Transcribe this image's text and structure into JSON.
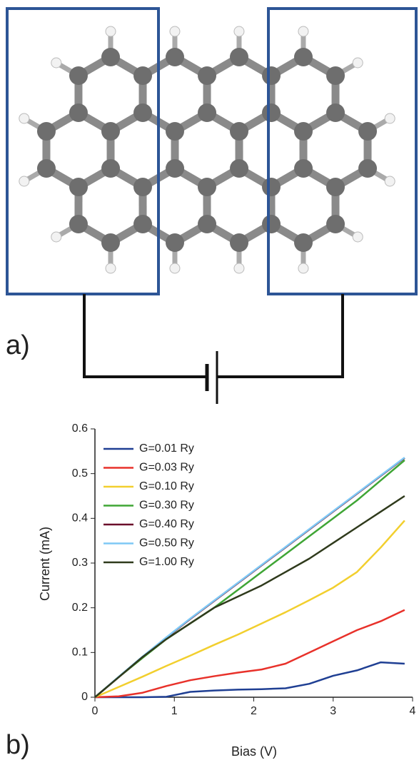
{
  "panel_labels": [
    "a)",
    "b)"
  ],
  "chart_data": {
    "type": "line",
    "xlabel": "Bias (V)",
    "ylabel": "Current (mA)",
    "x": [
      0,
      0.3,
      0.6,
      0.9,
      1.2,
      1.5,
      1.8,
      2.1,
      2.4,
      2.7,
      3.0,
      3.3,
      3.6,
      3.9
    ],
    "series": [
      {
        "name": "G=0.01 Ry",
        "color": "#1f3f93",
        "values": [
          0,
          0,
          0,
          0.001,
          0.012,
          0.015,
          0.017,
          0.018,
          0.02,
          0.03,
          0.048,
          0.06,
          0.078,
          0.075
        ]
      },
      {
        "name": "G=0.03 Ry",
        "color": "#e8312a",
        "values": [
          0,
          0.002,
          0.01,
          0.025,
          0.038,
          0.047,
          0.055,
          0.062,
          0.075,
          0.1,
          0.125,
          0.15,
          0.17,
          0.195
        ]
      },
      {
        "name": "G=0.10 Ry",
        "color": "#f2cf2e",
        "values": [
          0,
          0.023,
          0.046,
          0.07,
          0.093,
          0.117,
          0.14,
          0.165,
          0.19,
          0.217,
          0.245,
          0.28,
          0.335,
          0.395
        ]
      },
      {
        "name": "G=0.30 Ry",
        "color": "#3fa535",
        "values": [
          0,
          0.045,
          0.088,
          0.13,
          0.165,
          0.2,
          0.24,
          0.28,
          0.32,
          0.36,
          0.4,
          0.44,
          0.485,
          0.53
        ]
      },
      {
        "name": "G=0.40 Ry",
        "color": "#6b0f2b",
        "values": [
          0,
          0.045,
          0.09,
          0.133,
          0.175,
          0.215,
          0.255,
          0.295,
          0.335,
          0.375,
          0.415,
          0.455,
          0.495,
          0.535
        ]
      },
      {
        "name": "G=0.50 Ry",
        "color": "#7ec8f5",
        "values": [
          0,
          0.046,
          0.091,
          0.134,
          0.176,
          0.216,
          0.256,
          0.296,
          0.336,
          0.376,
          0.416,
          0.456,
          0.496,
          0.536
        ]
      },
      {
        "name": "G=1.00 Ry",
        "color": "#2f3a1c",
        "values": [
          0,
          0.045,
          0.09,
          0.13,
          0.165,
          0.2,
          0.225,
          0.25,
          0.28,
          0.31,
          0.345,
          0.38,
          0.415,
          0.45
        ]
      }
    ],
    "xlim": [
      0,
      4
    ],
    "xticks": [
      0,
      1,
      2,
      3,
      4
    ],
    "ylim": [
      0,
      0.6
    ],
    "yticks": [
      0,
      0.1,
      0.2,
      0.3,
      0.4,
      0.5,
      0.6
    ],
    "legend": "upper-left"
  }
}
